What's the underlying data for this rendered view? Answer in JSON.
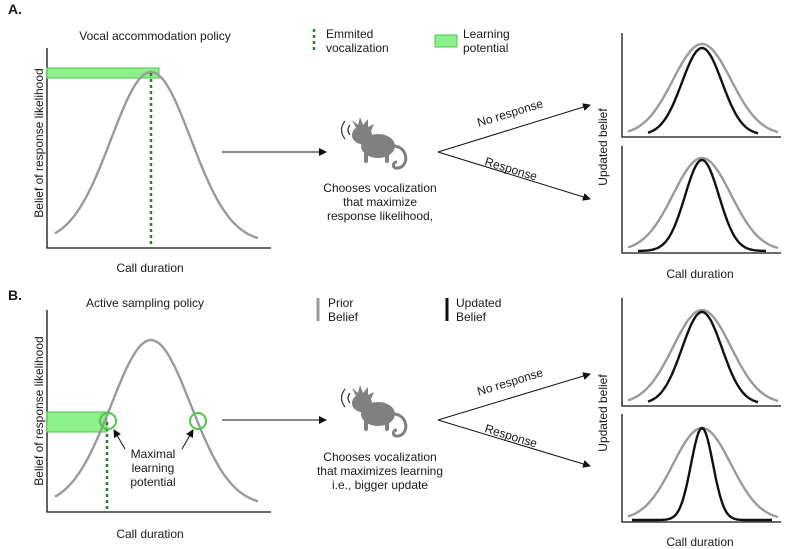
{
  "panel_a": {
    "letter": "A.",
    "policy_title": "Vocal accommodation policy",
    "y_label": "Belief of response likelihood",
    "x_label": "Call duration",
    "legend_emitted": "Emmited\nvocalization",
    "legend_learning": "Learning\npotential",
    "monkey_caption": "Chooses vocalization\nthat maximize\nresponse likelihood,",
    "branch_no_response": "No response",
    "branch_response": "Response",
    "right_y_label": "Updated belief",
    "right_x_label": "Call duration"
  },
  "panel_b": {
    "letter": "B.",
    "policy_title": "Active sampling policy",
    "y_label": "Belief of response likelihood",
    "x_label": "Call duration",
    "legend_prior": "Prior\nBelief",
    "legend_updated": "Updated\nBelief",
    "annotation": "Maximal\nlearning\npotential",
    "monkey_caption": "Chooses vocalization\nthat maximizes learning\ni.e., bigger update",
    "branch_no_response": "No response",
    "branch_response": "Response",
    "right_y_label": "Updated belief",
    "right_x_label": "Call duration"
  },
  "colors": {
    "prior_curve": "#9a9a9a",
    "updated_curve": "#111111",
    "emitted_line": "#2e7d32",
    "learning_fill": "#8ef08a",
    "learning_stroke": "#4cc94a",
    "monkey": "#808080"
  },
  "icons": {
    "monkey": "monkey-vocalizing-icon"
  }
}
